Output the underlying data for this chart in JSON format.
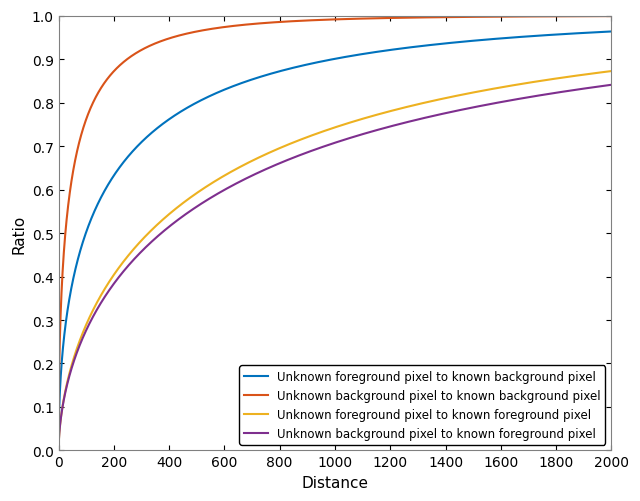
{
  "title": "",
  "xlabel": "Distance",
  "ylabel": "Ratio",
  "xlim": [
    0,
    2000
  ],
  "ylim": [
    0,
    1
  ],
  "xticks": [
    0,
    200,
    400,
    600,
    800,
    1000,
    1200,
    1400,
    1600,
    1800,
    2000
  ],
  "yticks": [
    0,
    0.1,
    0.2,
    0.3,
    0.4,
    0.5,
    0.6,
    0.7,
    0.8,
    0.9,
    1.0
  ],
  "curves": [
    {
      "label": "Unknown foreground pixel to known background pixel",
      "color": "#0072BD",
      "scale": 200,
      "shape": 0.52
    },
    {
      "label": "Unknown background pixel to known background pixel",
      "color": "#D95319",
      "scale": 50,
      "shape": 0.52
    },
    {
      "label": "Unknown foreground pixel to known foreground pixel",
      "color": "#EDB120",
      "scale": 600,
      "shape": 0.6
    },
    {
      "label": "Unknown background pixel to known foreground pixel",
      "color": "#7E2F8E",
      "scale": 700,
      "shape": 0.58
    }
  ],
  "legend_loc": "lower right",
  "legend_fontsize": 8.5,
  "axis_label_fontsize": 11,
  "tick_fontsize": 10,
  "linewidth": 1.5,
  "background_color": "#ffffff",
  "spine_color": "#808080"
}
